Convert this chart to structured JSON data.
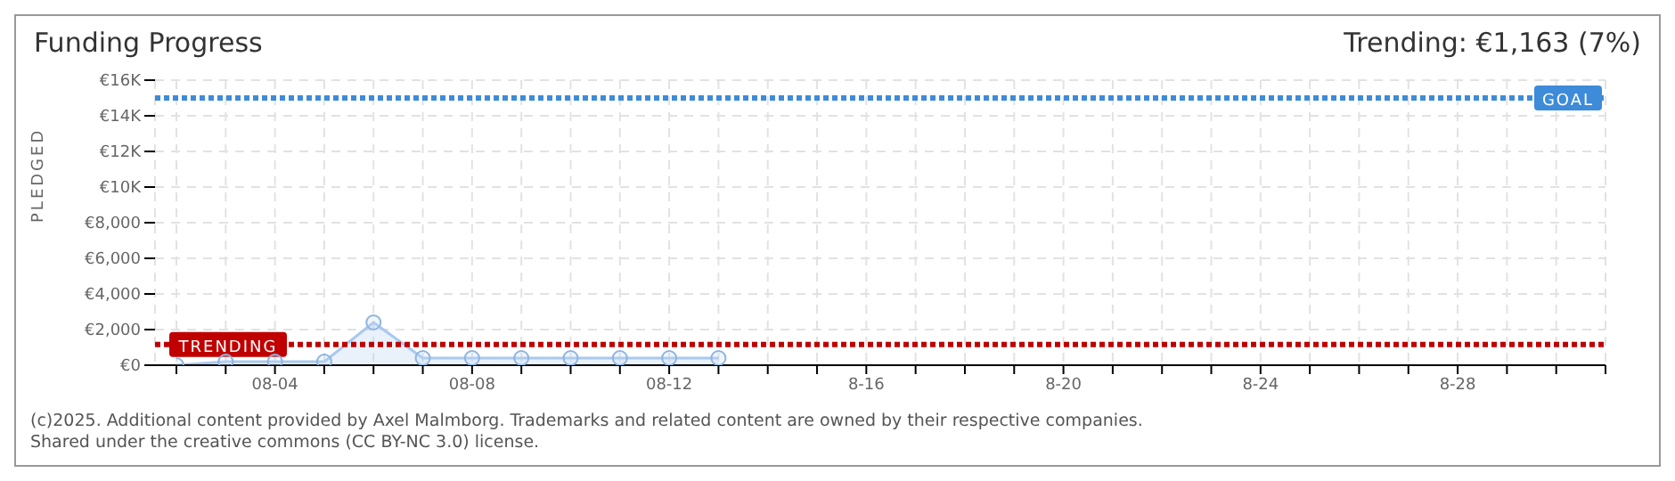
{
  "chart_data": {
    "type": "area",
    "title": "Funding Progress",
    "subtitle": "Trending: €1,163 (7%)",
    "ylabel": "PLEDGED",
    "categories": [
      null,
      null,
      "08-04",
      null,
      null,
      null,
      "08-08",
      null,
      null,
      null,
      "08-12",
      null,
      null,
      null,
      "8-16",
      null,
      null,
      null,
      "8-20",
      null,
      null,
      null,
      "8-24",
      null,
      null,
      null,
      "8-28",
      null,
      null,
      null
    ],
    "series": [
      {
        "color": "#a9c9ee",
        "values": [
          0,
          200,
          200,
          200,
          2400,
          400,
          400,
          400,
          400,
          400,
          400,
          400,
          null,
          null,
          null,
          null,
          null,
          null,
          null,
          null,
          null,
          null,
          null,
          null,
          null,
          null,
          null,
          null,
          null,
          null
        ]
      }
    ],
    "ylim": [
      0,
      16000
    ],
    "yticks": [
      {
        "value": 0,
        "label": "€0"
      },
      {
        "value": 2000,
        "label": "€2,000"
      },
      {
        "value": 4000,
        "label": "€4,000"
      },
      {
        "value": 6000,
        "label": "€6,000"
      },
      {
        "value": 8000,
        "label": "€8,000"
      },
      {
        "value": 10000,
        "label": "€10K"
      },
      {
        "value": 12000,
        "label": "€12K"
      },
      {
        "value": 14000,
        "label": "€14K"
      },
      {
        "value": 16000,
        "label": "€16K"
      }
    ],
    "grid": true,
    "marker": "circle",
    "ref_lines": [
      {
        "axis": "y",
        "value": 15000,
        "label": "GOAL",
        "color": "#3d8bd9",
        "line_style": "dotted"
      },
      {
        "axis": "y",
        "value": 1163,
        "label": "TRENDING",
        "color": "#c00000",
        "line_style": "dotted"
      }
    ],
    "annotations": [
      "(c)2025. Additional content provided by Axel Malmborg. Trademarks and related content are owned by their respective companies.",
      "Shared under the creative commons (CC BY-NC 3.0) license."
    ]
  }
}
